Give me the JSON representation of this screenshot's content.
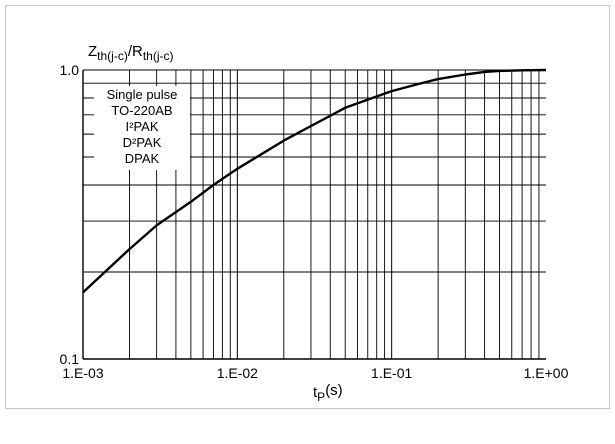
{
  "chart_data": {
    "type": "line",
    "x_scale": "log",
    "y_scale": "log",
    "xlim": [
      0.001,
      1.0
    ],
    "ylim": [
      0.1,
      1.0
    ],
    "grid": true,
    "x_ticks": [
      {
        "value": 0.001,
        "label": "1.E-03"
      },
      {
        "value": 0.01,
        "label": "1.E-02"
      },
      {
        "value": 0.1,
        "label": "1.E-01"
      },
      {
        "value": 1.0,
        "label": "1.E+00"
      }
    ],
    "y_ticks": [
      {
        "value": 0.1,
        "label": "0.1"
      },
      {
        "value": 1.0,
        "label": "1.0"
      }
    ],
    "ylabel": {
      "main": "Z",
      "sub1": "th(j-c)",
      "sep": "/R",
      "sub2": "th(j-c)"
    },
    "xlabel": {
      "main": "t",
      "sub": "P",
      "unit": "(s)"
    },
    "legend_lines": [
      "Single pulse",
      "TO-220AB",
      "I²PAK",
      "D²PAK",
      "DPAK"
    ],
    "series": [
      {
        "x": [
          0.001,
          0.002,
          0.003,
          0.005,
          0.007,
          0.01,
          0.02,
          0.03,
          0.05,
          0.07,
          0.1,
          0.15,
          0.2,
          0.3,
          0.4,
          0.5,
          0.7,
          1.0
        ],
        "y": [
          0.17,
          0.24,
          0.29,
          0.35,
          0.4,
          0.455,
          0.57,
          0.64,
          0.74,
          0.79,
          0.845,
          0.895,
          0.93,
          0.965,
          0.985,
          0.993,
          0.998,
          1.0
        ]
      }
    ]
  }
}
